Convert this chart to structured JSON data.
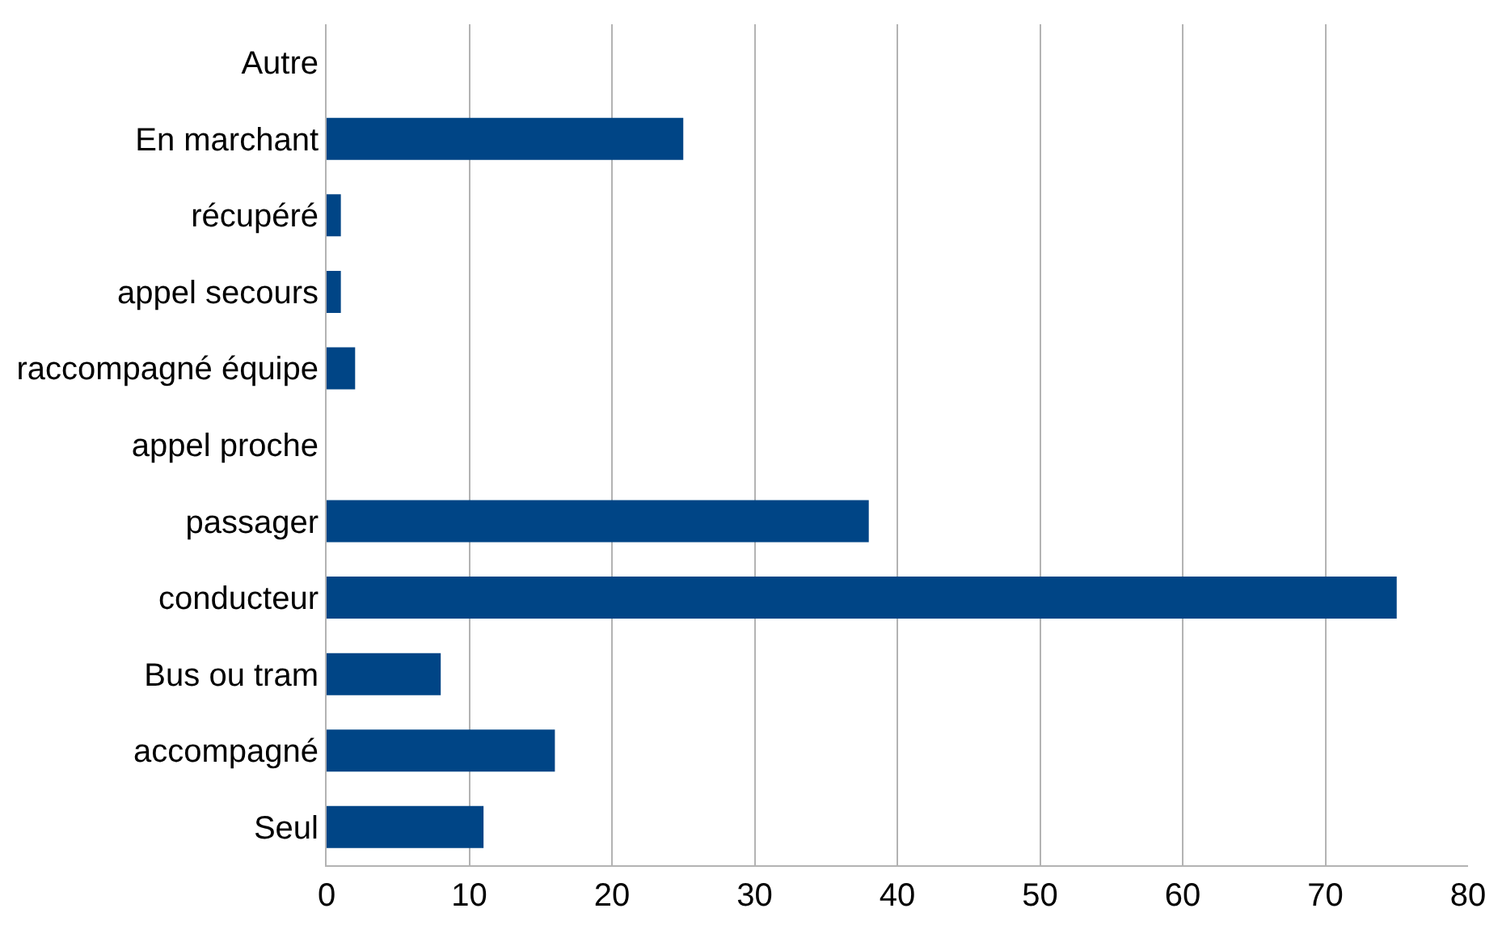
{
  "chart_data": {
    "type": "bar",
    "orientation": "horizontal",
    "categories": [
      "Autre",
      "En marchant",
      "récupéré",
      "appel secours",
      "raccompagné équipe",
      "appel proche",
      "passager",
      "conducteur",
      "Bus ou tram",
      "accompagné",
      "Seul"
    ],
    "values": [
      0,
      25,
      1,
      1,
      2,
      0,
      38,
      75,
      8,
      16,
      11
    ],
    "color": "#004586",
    "xlim": [
      0,
      80
    ],
    "xticks": [
      0,
      10,
      20,
      30,
      40,
      50,
      60,
      70,
      80
    ],
    "grid": "x"
  }
}
